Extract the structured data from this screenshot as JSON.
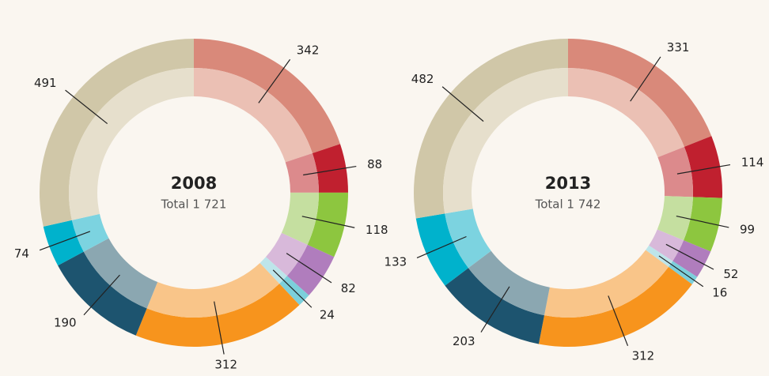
{
  "chart_data": [
    {
      "type": "donut",
      "title": "2008",
      "subtitle": "Total 1 721",
      "values": [
        342,
        88,
        118,
        82,
        24,
        312,
        190,
        74,
        491
      ],
      "colors": [
        "#d9897a",
        "#c0202f",
        "#8dc63f",
        "#b07dbd",
        "#7ccfdb",
        "#f7941d",
        "#1d546f",
        "#00b2cc",
        "#d0c7a8"
      ],
      "inner_colors": [
        "#ebc0b4",
        "#dc8a8c",
        "#c5dfa0",
        "#d8b9da",
        "#bde5ea",
        "#f9c589",
        "#8ba7b1",
        "#7cd3e0",
        "#e6dfcc"
      ]
    },
    {
      "type": "donut",
      "title": "2013",
      "subtitle": "Total 1 742",
      "values": [
        331,
        114,
        99,
        52,
        16,
        312,
        203,
        133,
        482
      ],
      "colors": [
        "#d9897a",
        "#c0202f",
        "#8dc63f",
        "#b07dbd",
        "#7ccfdb",
        "#f7941d",
        "#1d546f",
        "#00b2cc",
        "#d0c7a8"
      ],
      "inner_colors": [
        "#ebc0b4",
        "#dc8a8c",
        "#c5dfa0",
        "#d8b9da",
        "#bde5ea",
        "#f9c589",
        "#8ba7b1",
        "#7cd3e0",
        "#e6dfcc"
      ]
    }
  ]
}
